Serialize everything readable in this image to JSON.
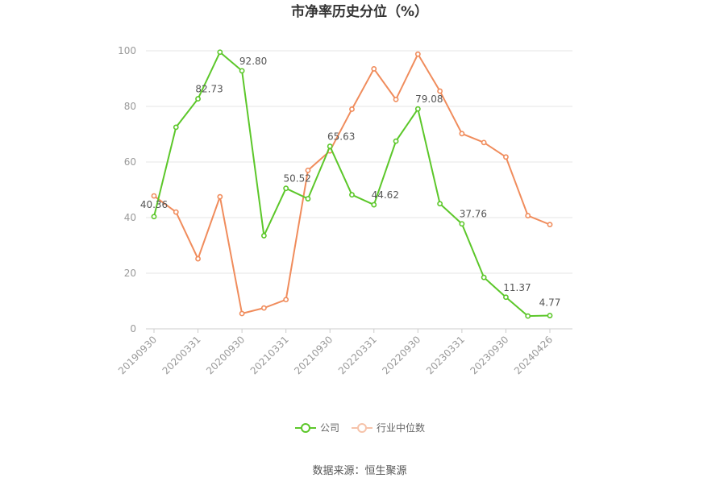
{
  "chart_data": {
    "type": "line",
    "title": "市净率历史分位（%）",
    "source": "数据来源：恒生聚源",
    "ylim": [
      0,
      100
    ],
    "yticks": [
      0,
      20,
      40,
      60,
      80,
      100
    ],
    "grid": true,
    "legend_position": "bottom",
    "x": [
      "20190930",
      "20191231",
      "20200331",
      "20200630",
      "20200930",
      "20201231",
      "20210331",
      "20210630",
      "20210930",
      "20211231",
      "20220331",
      "20220630",
      "20220930",
      "20221231",
      "20230331",
      "20230630",
      "20230930",
      "20231231",
      "20240426"
    ],
    "xtick_labels": [
      "20190930",
      "20200331",
      "20200930",
      "20210331",
      "20210930",
      "20220331",
      "20220930",
      "20230331",
      "20230930",
      "20240426"
    ],
    "series": [
      {
        "name": "公司",
        "color": "#5cc72a",
        "values": [
          40.36,
          72.5,
          82.73,
          99.5,
          92.8,
          33.5,
          50.52,
          46.8,
          65.63,
          48.2,
          44.62,
          67.5,
          79.08,
          45.0,
          37.76,
          18.5,
          11.37,
          4.6,
          4.77
        ],
        "labels": [
          "40.36",
          null,
          "82.73",
          null,
          "92.80",
          null,
          "50.52",
          null,
          "65.63",
          null,
          "44.62",
          null,
          "79.08",
          null,
          "37.76",
          null,
          "11.37",
          null,
          "4.77"
        ]
      },
      {
        "name": "行业中位数",
        "color": "#f08c5c",
        "values": [
          47.8,
          42.0,
          25.2,
          47.5,
          5.5,
          7.5,
          10.5,
          57.0,
          64.0,
          79.0,
          93.5,
          82.5,
          98.8,
          85.5,
          70.2,
          67.0,
          61.8,
          40.7,
          37.5
        ],
        "labels": []
      }
    ]
  }
}
